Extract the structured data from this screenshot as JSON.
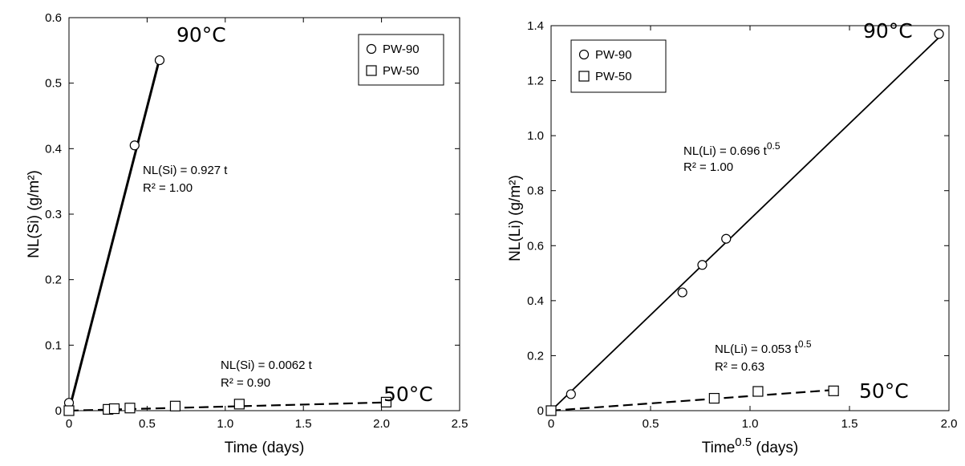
{
  "chart_data": [
    {
      "type": "scatter",
      "xlabel": "Time (days)",
      "ylabel": "NL(Si) (g/m²)",
      "xlim": [
        0,
        2.5
      ],
      "ylim": [
        0,
        0.6
      ],
      "xticks": [
        "0",
        "0.5",
        "1.0",
        "1.5",
        "2.0",
        "2.5"
      ],
      "yticks": [
        "0",
        "0.1",
        "0.2",
        "0.3",
        "0.4",
        "0.5",
        "0.6"
      ],
      "legend_position": "top-right",
      "series": [
        {
          "name": "PW-90",
          "marker": "circle",
          "x": [
            0.0,
            0.42,
            0.58
          ],
          "y": [
            0.012,
            0.405,
            0.535
          ],
          "fit": {
            "slope": 0.927,
            "x_range": [
              0,
              0.58
            ],
            "style": "solid"
          },
          "equation": "NL(Si) = 0.927 t",
          "r2": "R² = 1.00",
          "temperature": "90°C"
        },
        {
          "name": "PW-50",
          "marker": "square",
          "x": [
            0.0,
            0.25,
            0.29,
            0.39,
            0.68,
            1.09,
            2.03
          ],
          "y": [
            0.0,
            0.002,
            0.003,
            0.004,
            0.007,
            0.01,
            0.013
          ],
          "fit": {
            "slope": 0.0062,
            "x_range": [
              0,
              2.03
            ],
            "style": "dashed"
          },
          "equation": "NL(Si) = 0.0062 t",
          "r2": "R² = 0.90",
          "temperature": "50°C"
        }
      ]
    },
    {
      "type": "scatter",
      "xlabel_base": "Time",
      "xlabel_sup": "0.5",
      "xlabel_tail": " (days)",
      "ylabel": "NL(Li) (g/m²)",
      "xlim": [
        0,
        2.0
      ],
      "ylim": [
        0,
        1.4
      ],
      "xticks": [
        "0",
        "0.5",
        "1.0",
        "1.5",
        "2.0"
      ],
      "yticks": [
        "0",
        "0.2",
        "0.4",
        "0.6",
        "0.8",
        "1.0",
        "1.2",
        "1.4"
      ],
      "legend_position": "top-left",
      "series": [
        {
          "name": "PW-90",
          "marker": "circle",
          "x": [
            0.1,
            0.66,
            0.76,
            0.88,
            1.95
          ],
          "y": [
            0.06,
            0.43,
            0.53,
            0.625,
            1.37
          ],
          "fit": {
            "slope": 0.696,
            "x_range": [
              0,
              1.95
            ],
            "style": "solid"
          },
          "equation_base": "NL(Li) = 0.696 t",
          "equation_sup": "0.5",
          "r2": "R² = 1.00",
          "temperature": "90°C"
        },
        {
          "name": "PW-50",
          "marker": "square",
          "x": [
            0.0,
            0.82,
            1.04,
            1.42
          ],
          "y": [
            0.0,
            0.045,
            0.07,
            0.072
          ],
          "fit": {
            "slope": 0.053,
            "x_range": [
              0,
              1.42
            ],
            "style": "dashed"
          },
          "equation_base": "NL(Li) = 0.053 t",
          "equation_sup": "0.5",
          "r2": "R² = 0.63",
          "temperature": "50°C"
        }
      ]
    }
  ]
}
